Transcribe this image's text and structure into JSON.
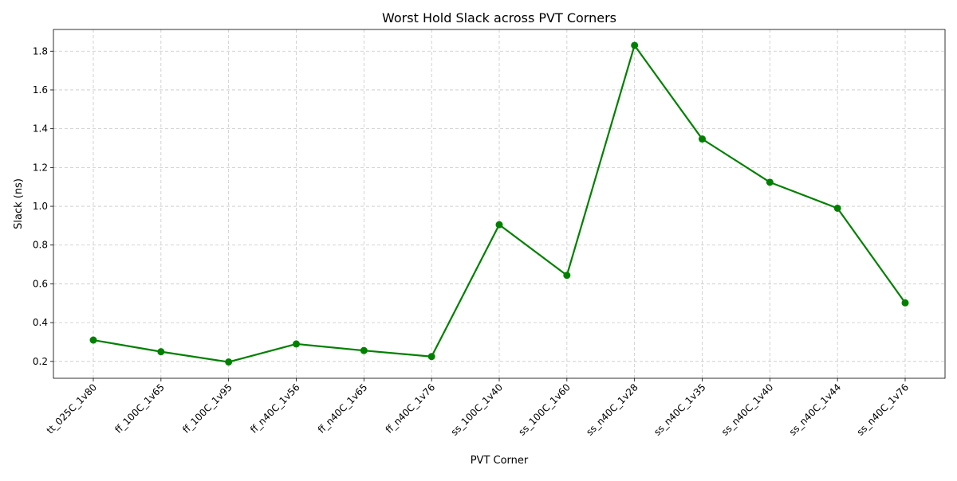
{
  "chart_data": {
    "type": "line",
    "title": "Worst Hold Slack across PVT Corners",
    "xlabel": "PVT Corner",
    "ylabel": "Slack (ns)",
    "categories": [
      "tt_025C_1v80",
      "ff_100C_1v65",
      "ff_100C_1v95",
      "ff_n40C_1v56",
      "ff_n40C_1v65",
      "ff_n40C_1v76",
      "ss_100C_1v40",
      "ss_100C_1v60",
      "ss_n40C_1v28",
      "ss_n40C_1v35",
      "ss_n40C_1v40",
      "ss_n40C_1v44",
      "ss_n40C_1v76"
    ],
    "series": [
      {
        "values": [
          0.31,
          0.25,
          0.197,
          0.29,
          0.256,
          0.225,
          0.905,
          0.644,
          1.83,
          1.347,
          1.124,
          0.99,
          0.502
        ],
        "color": "#008000",
        "marker": "circle"
      }
    ],
    "yticks": [
      "0.2",
      "0.4",
      "0.6",
      "0.8",
      "1.0",
      "1.2",
      "1.4",
      "1.6",
      "1.8"
    ],
    "ylim": [
      0.113,
      1.912
    ],
    "grid": true,
    "legend": "none"
  }
}
